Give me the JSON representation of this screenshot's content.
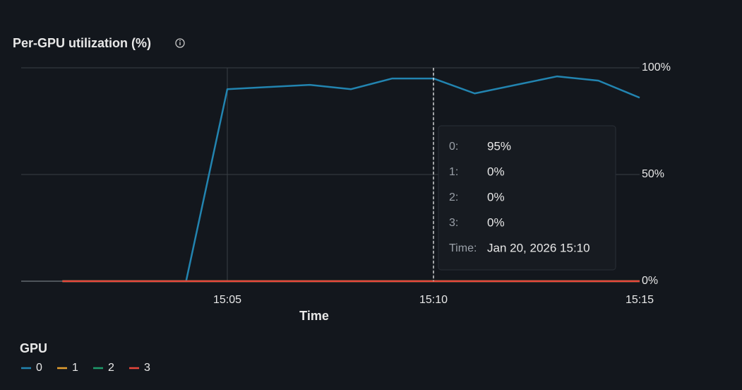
{
  "chart_data": {
    "type": "line",
    "title": "Per-GPU utilization (%)",
    "x_label": "Time",
    "x": [
      "15:01",
      "15:02",
      "15:03",
      "15:04",
      "15:05",
      "15:06",
      "15:07",
      "15:08",
      "15:09",
      "15:10",
      "15:11",
      "15:12",
      "15:13",
      "15:14",
      "15:15"
    ],
    "xlim": [
      "15:00",
      "15:15"
    ],
    "xticks": [
      "15:05",
      "15:10",
      "15:15"
    ],
    "ylim": [
      0,
      100
    ],
    "yticks": [
      {
        "value": 0,
        "label": "0%"
      },
      {
        "value": 50,
        "label": "50%"
      },
      {
        "value": 100,
        "label": "100%"
      }
    ],
    "grid": true,
    "legend_title": "GPU",
    "series": [
      {
        "name": "0",
        "color": "#2284b0",
        "values": [
          0,
          0,
          0,
          0,
          90,
          91,
          92,
          90,
          95,
          95,
          88,
          92,
          96,
          94,
          86
        ]
      },
      {
        "name": "1",
        "color": "#e5a030",
        "values": [
          0,
          0,
          0,
          0,
          0,
          0,
          0,
          0,
          0,
          0,
          0,
          0,
          0,
          0,
          0
        ]
      },
      {
        "name": "2",
        "color": "#1e9c6c",
        "values": [
          0,
          0,
          0,
          0,
          0,
          0,
          0,
          0,
          0,
          0,
          0,
          0,
          0,
          0,
          0
        ]
      },
      {
        "name": "3",
        "color": "#e8473b",
        "values": [
          0,
          0,
          0,
          0,
          0,
          0,
          0,
          0,
          0,
          0,
          0,
          0,
          0,
          0,
          0
        ]
      }
    ],
    "cursor": "15:10",
    "tooltip": {
      "rows": [
        {
          "label": "0:",
          "value": "95%"
        },
        {
          "label": "1:",
          "value": "0%"
        },
        {
          "label": "2:",
          "value": "0%"
        },
        {
          "label": "3:",
          "value": "0%"
        }
      ],
      "time_label": "Time:",
      "time": "Jan 20, 2026 15:10"
    }
  }
}
